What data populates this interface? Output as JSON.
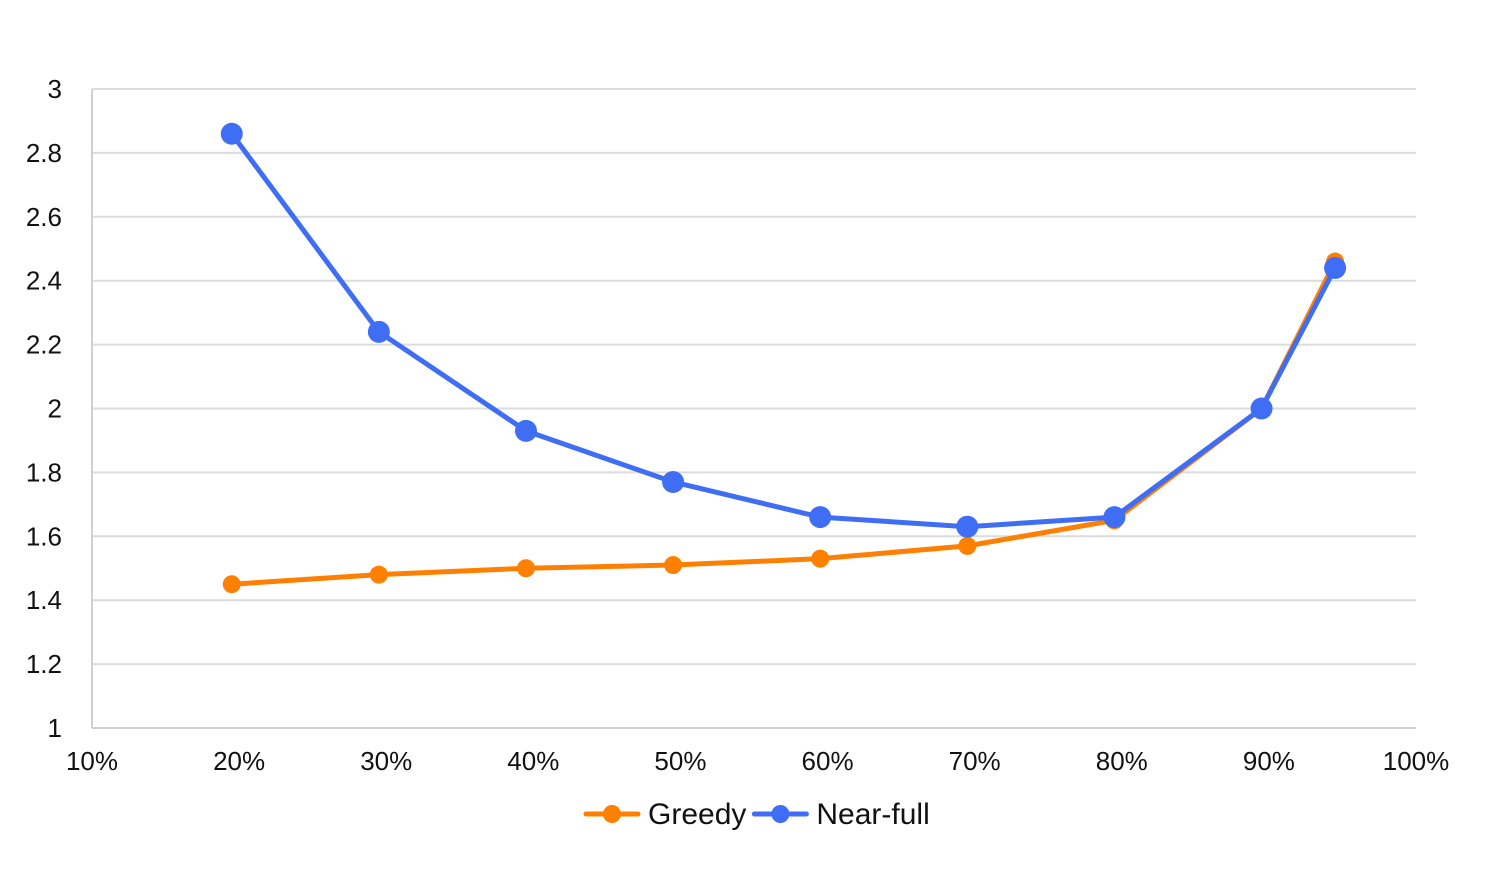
{
  "chart_data": {
    "type": "line",
    "title": "",
    "xlabel": "",
    "ylabel": "",
    "x": [
      0.195,
      0.295,
      0.395,
      0.495,
      0.595,
      0.695,
      0.795,
      0.895,
      0.945
    ],
    "xlim": [
      0.1,
      1.0
    ],
    "ylim": [
      1,
      3
    ],
    "x_ticks": [
      0.1,
      0.2,
      0.3,
      0.4,
      0.5,
      0.6,
      0.7,
      0.8,
      0.9,
      1.0
    ],
    "x_tick_labels": [
      "10%",
      "20%",
      "30%",
      "40%",
      "50%",
      "60%",
      "70%",
      "80%",
      "90%",
      "100%"
    ],
    "y_ticks": [
      1,
      1.2,
      1.4,
      1.6,
      1.8,
      2,
      2.2,
      2.4,
      2.6,
      2.8,
      3
    ],
    "y_tick_labels": [
      "1",
      "1.2",
      "1.4",
      "1.6",
      "1.8",
      "2",
      "2.2",
      "2.4",
      "2.6",
      "2.8",
      "3"
    ],
    "grid": true,
    "legend_position": "bottom",
    "series": [
      {
        "name": "Greedy",
        "color": "#ff8000",
        "values": [
          1.45,
          1.48,
          1.5,
          1.51,
          1.53,
          1.57,
          1.65,
          2.0,
          2.46
        ]
      },
      {
        "name": "Near-full",
        "color": "#3f6ef5",
        "values": [
          2.86,
          2.24,
          1.93,
          1.77,
          1.66,
          1.63,
          1.66,
          2.0,
          2.44
        ]
      }
    ]
  }
}
